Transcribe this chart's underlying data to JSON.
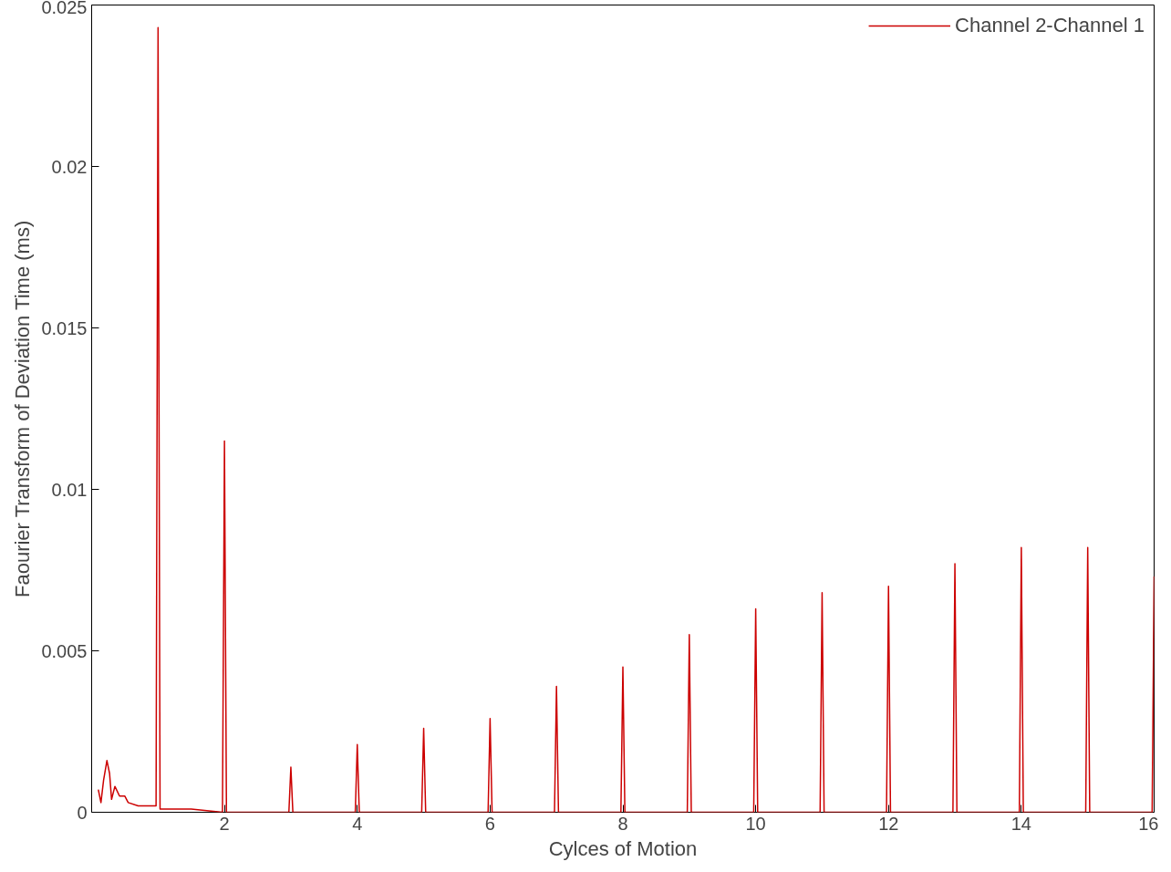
{
  "chart_data": {
    "type": "line",
    "xlabel": "Cylces of Motion",
    "ylabel": "Faourier Transform of Deviation Time (ms)",
    "xlim": [
      0,
      16
    ],
    "ylim": [
      0,
      0.025
    ],
    "xticks": [
      2,
      4,
      6,
      8,
      10,
      12,
      14,
      16
    ],
    "yticks": [
      0,
      0.005,
      0.01,
      0.015,
      0.02,
      0.025
    ],
    "grid": false,
    "legend": "top right",
    "marker": "none",
    "line_style": "solid",
    "series": [
      {
        "name": "Channel 2-Channel 1",
        "color": "#cc0000",
        "x": [
          0.1,
          0.14,
          0.18,
          0.23,
          0.27,
          0.3,
          0.35,
          0.42,
          0.5,
          0.55,
          0.7,
          0.95,
          0.97,
          1.0,
          1.03,
          1.5,
          1.97,
          2.0,
          2.03,
          2.97,
          3.0,
          3.03,
          3.97,
          4.0,
          4.03,
          4.97,
          5.0,
          5.03,
          5.97,
          6.0,
          6.03,
          6.97,
          7.0,
          7.03,
          7.97,
          8.0,
          8.03,
          8.97,
          9.0,
          9.03,
          9.97,
          10.0,
          10.03,
          10.97,
          11.0,
          11.03,
          11.97,
          12.0,
          12.03,
          12.97,
          13.0,
          13.03,
          13.97,
          14.0,
          14.03,
          14.97,
          15.0,
          15.03,
          15.97,
          16.0
        ],
        "values": [
          0.0007,
          0.0003,
          0.001,
          0.0016,
          0.0012,
          0.0004,
          0.0008,
          0.0005,
          0.0005,
          0.0003,
          0.0002,
          0.0002,
          0.0002,
          0.0243,
          0.0001,
          0.0001,
          0,
          0.0115,
          0,
          0,
          0.0014,
          0,
          0,
          0.0021,
          0,
          0,
          0.0026,
          0,
          0,
          0.0029,
          0,
          0,
          0.0039,
          0,
          0,
          0.0045,
          0,
          0,
          0.0055,
          0,
          0,
          0.0063,
          0,
          0,
          0.0068,
          0,
          0,
          0.007,
          0,
          0,
          0.0077,
          0,
          0,
          0.0082,
          0,
          0,
          0.0082,
          0,
          0,
          0.0073
        ]
      }
    ]
  }
}
